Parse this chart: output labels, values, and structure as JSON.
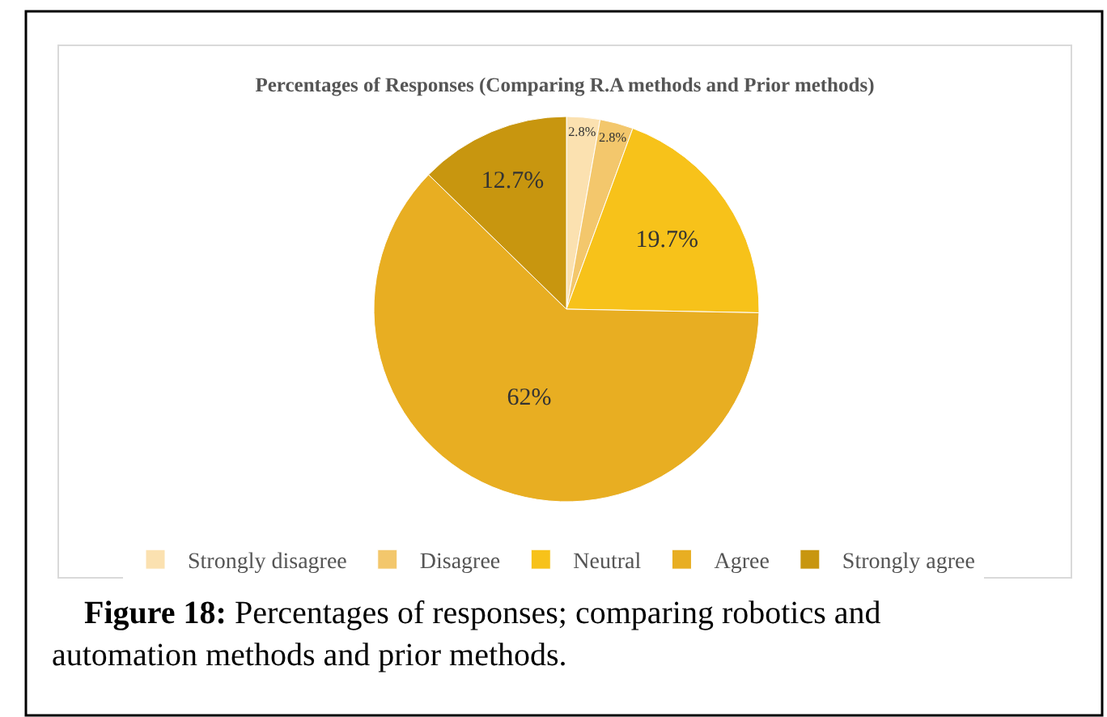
{
  "chart_data": {
    "type": "pie",
    "title": "Percentages of Responses (Comparing R.A methods and Prior methods)",
    "categories": [
      "Strongly disagree",
      "Disagree",
      "Neutral",
      "Agree",
      "Strongly agree"
    ],
    "values": [
      2.8,
      2.8,
      19.7,
      62,
      12.7
    ],
    "value_labels": [
      "2.8%",
      "2.8%",
      "19.7%",
      "62%",
      "12.7%"
    ],
    "colors": [
      "#fbe1b0",
      "#f3c76c",
      "#f7c21a",
      "#e8ae22",
      "#c8960f"
    ],
    "legend": "bottom",
    "annotations": [
      "Figure 18: Percentages of responses; comparing robotics and automation methods and prior methods."
    ]
  }
}
